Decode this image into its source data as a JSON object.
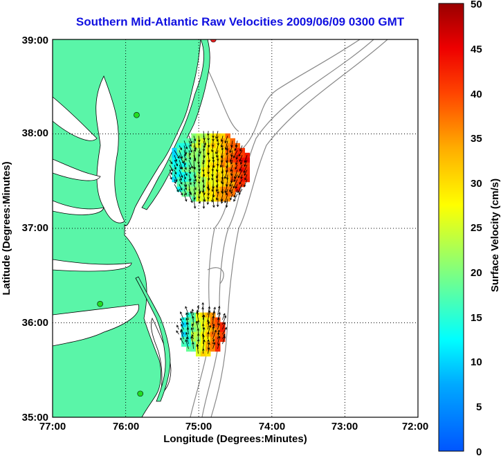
{
  "title": "Southern Mid-Atlantic Raw Velocities 2009/06/09 0300 GMT",
  "map": {
    "xlabel": "Longitude (Degrees:Minutes)",
    "ylabel": "Latitude (Degrees:Minutes)",
    "lon_range": [
      -77,
      -72
    ],
    "lat_range": [
      35,
      39
    ],
    "x_ticks": [
      "77:00",
      "76:00",
      "75:00",
      "74:00",
      "73:00",
      "72:00"
    ],
    "y_ticks": [
      "39:00",
      "38:00",
      "37:00",
      "36:00",
      "35:00"
    ],
    "grid": "dotted",
    "land_color": "#5af5a8",
    "water_color": "#ffffff",
    "station_color": "#22dd22"
  },
  "colorbar": {
    "label": "Surface Velocity (cm/s)",
    "min": 0,
    "max": 50,
    "ticks": [
      "50",
      "45",
      "40",
      "35",
      "30",
      "25",
      "20",
      "15",
      "10",
      "5",
      "0"
    ]
  },
  "chart_data": {
    "type": "vector-field",
    "units": "cm/s",
    "regions": [
      {
        "name": "",
        "center_lon": -74.85,
        "center_lat": 37.65,
        "speed_range": [
          10,
          45
        ]
      },
      {
        "name": "",
        "center_lon": -74.95,
        "center_lat": 35.9,
        "speed_range": [
          10,
          45
        ]
      }
    ],
    "stations": [
      {
        "lon": -74.8,
        "lat": 39.0,
        "status": "red"
      },
      {
        "lon": -75.85,
        "lat": 38.2
      },
      {
        "lon": -76.35,
        "lat": 36.2
      },
      {
        "lon": -75.8,
        "lat": 35.25
      }
    ]
  }
}
